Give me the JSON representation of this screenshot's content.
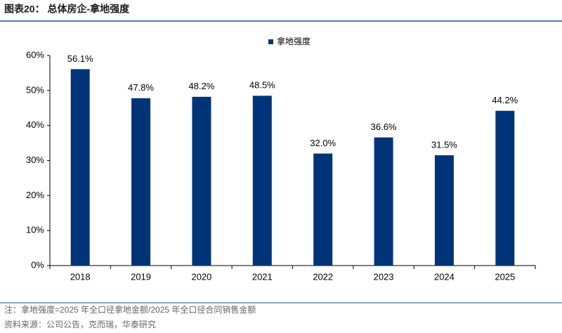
{
  "chart_data": {
    "type": "bar",
    "title": "图表20：  总体房企-拿地强度",
    "categories": [
      "2018",
      "2019",
      "2020",
      "2021",
      "2022",
      "2023",
      "2024",
      "2025"
    ],
    "series": [
      {
        "name": "拿地强度",
        "color": "#003478",
        "values": [
          56.1,
          47.8,
          48.2,
          48.5,
          32.0,
          36.6,
          31.5,
          44.2
        ],
        "value_labels": [
          "56.1%",
          "47.8%",
          "48.2%",
          "48.5%",
          "32.0%",
          "36.6%",
          "31.5%",
          "44.2%"
        ]
      }
    ],
    "ylim": [
      0,
      60
    ],
    "yticks": [
      {
        "value": 0,
        "label": "0%"
      },
      {
        "value": 10,
        "label": "10%"
      },
      {
        "value": 20,
        "label": "20%"
      },
      {
        "value": 30,
        "label": "30%"
      },
      {
        "value": 40,
        "label": "40%"
      },
      {
        "value": 50,
        "label": "50%"
      },
      {
        "value": 60,
        "label": "60%"
      }
    ],
    "grid": false,
    "legend": "top"
  },
  "notes": [
    "注：拿地强度=2025 年全口径拿地金额/2025 年全口径合同销售金额",
    "资料来源：公司公告，克而瑞，华泰研究"
  ]
}
